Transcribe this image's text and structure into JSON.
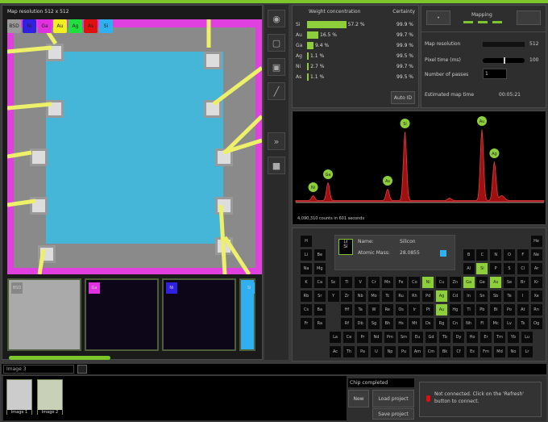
{
  "map": {
    "title": "Map resolution 512 x 512",
    "chips": [
      {
        "label": "BSD",
        "color": "#9a9a9a"
      },
      {
        "label": "Ni",
        "color": "#3020e0"
      },
      {
        "label": "Ga",
        "color": "#e030e0"
      },
      {
        "label": "Au",
        "color": "#f0f020"
      },
      {
        "label": "Ag",
        "color": "#20e040"
      },
      {
        "label": "As",
        "color": "#e01010"
      },
      {
        "label": "Si",
        "color": "#30b0f0"
      }
    ],
    "thumbnails": [
      {
        "label": "BSD"
      },
      {
        "label": "Ga",
        "color": "#e030e0"
      },
      {
        "label": "Ni",
        "color": "#3020e0"
      },
      {
        "label": "Si",
        "color": "#30b0f0"
      }
    ],
    "progress": 0.4
  },
  "weights": {
    "header": "Weight concentration",
    "certainty_header": "Certainty",
    "auto_id": "Auto ID",
    "rows": [
      {
        "el": "Si",
        "val": 57.2,
        "text": "57.2 %",
        "cert": "99.9 %"
      },
      {
        "el": "Au",
        "val": 16.5,
        "text": "16.5 %",
        "cert": "99.7 %"
      },
      {
        "el": "Ga",
        "val": 9.4,
        "text": "9.4 %",
        "cert": "99.9 %"
      },
      {
        "el": "Ag",
        "val": 1.1,
        "text": "1.1 %",
        "cert": "99.5 %"
      },
      {
        "el": "Ni",
        "val": 2.7,
        "text": "2.7 %",
        "cert": "99.7 %"
      },
      {
        "el": "As",
        "val": 1.1,
        "text": "1.1 %",
        "cert": "99.5 %"
      }
    ]
  },
  "mapping": {
    "title": "Mapping",
    "resolution_label": "Map resolution",
    "resolution": "512",
    "resolution_level": 1.0,
    "pixel_time_label": "Pixel time (ms)",
    "pixel_time": "100",
    "pixel_time_level": 0.5,
    "passes_label": "Number of passes",
    "passes": "1",
    "est_label": "Estimated map time",
    "est": "00:05:21"
  },
  "spectrum": {
    "caption": "4,090,310 counts in 601 seconds",
    "peaks": [
      {
        "label": "Ni",
        "pos": 0.07,
        "h": 0.06
      },
      {
        "label": "Ga",
        "pos": 0.13,
        "h": 0.22
      },
      {
        "label": "As",
        "pos": 0.37,
        "h": 0.14
      },
      {
        "label": "Si",
        "pos": 0.44,
        "h": 0.85
      },
      {
        "label": "Au",
        "pos": 0.75,
        "h": 0.88
      },
      {
        "label": "Ag",
        "pos": 0.8,
        "h": 0.48
      }
    ]
  },
  "element": {
    "symbol": "Si",
    "number": "14",
    "name_label": "Name:",
    "name": "Silicon",
    "mass_label": "Atomic Mass:",
    "mass": "28.0855",
    "color": "#30b0f0"
  },
  "periodic": {
    "selected": [
      "Si",
      "Ni",
      "Ga",
      "As",
      "Ag",
      "Au"
    ],
    "rows": [
      [
        "H",
        "",
        "",
        "",
        "",
        "",
        "",
        "",
        "",
        "",
        "",
        "",
        "",
        "",
        "",
        "",
        "",
        "He"
      ],
      [
        "Li",
        "Be",
        "",
        "",
        "",
        "",
        "",
        "",
        "",
        "",
        "",
        "",
        "B",
        "C",
        "N",
        "O",
        "F",
        "Ne"
      ],
      [
        "Na",
        "Mg",
        "",
        "",
        "",
        "",
        "",
        "",
        "",
        "",
        "",
        "",
        "Al",
        "Si",
        "P",
        "S",
        "Cl",
        "Ar"
      ],
      [
        "K",
        "Ca",
        "Sc",
        "Ti",
        "V",
        "Cr",
        "Mn",
        "Fe",
        "Co",
        "Ni",
        "Cu",
        "Zn",
        "Ga",
        "Ge",
        "As",
        "Se",
        "Br",
        "Kr"
      ],
      [
        "Rb",
        "Sr",
        "Y",
        "Zr",
        "Nb",
        "Mo",
        "Tc",
        "Ru",
        "Rh",
        "Pd",
        "Ag",
        "Cd",
        "In",
        "Sn",
        "Sb",
        "Te",
        "I",
        "Xe"
      ],
      [
        "Cs",
        "Ba",
        "",
        "Hf",
        "Ta",
        "W",
        "Re",
        "Os",
        "Ir",
        "Pt",
        "Au",
        "Hg",
        "Tl",
        "Pb",
        "Bi",
        "Po",
        "At",
        "Rn"
      ],
      [
        "Fr",
        "Ra",
        "",
        "Rf",
        "Db",
        "Sg",
        "Bh",
        "Hs",
        "Mt",
        "Ds",
        "Rg",
        "Cn",
        "Nh",
        "Fl",
        "Mc",
        "Lv",
        "Ts",
        "Og"
      ]
    ],
    "lanthanides": [
      "La",
      "Ce",
      "Pr",
      "Nd",
      "Pm",
      "Sm",
      "Eu",
      "Gd",
      "Tb",
      "Dy",
      "Ho",
      "Er",
      "Tm",
      "Yb",
      "Lu"
    ],
    "actinides": [
      "Ac",
      "Th",
      "Pa",
      "U",
      "Np",
      "Pu",
      "Am",
      "Cm",
      "Bk",
      "Cf",
      "Es",
      "Fm",
      "Md",
      "No",
      "Lr"
    ]
  },
  "image_name": "Image 3",
  "bottom": {
    "thumbs": [
      "Image 1",
      "Image 2"
    ],
    "status_field": "Chip completed",
    "new": "New",
    "load": "Load project",
    "save": "Save project",
    "message": "Not connected. Click on the 'Refresh' button to connect."
  }
}
